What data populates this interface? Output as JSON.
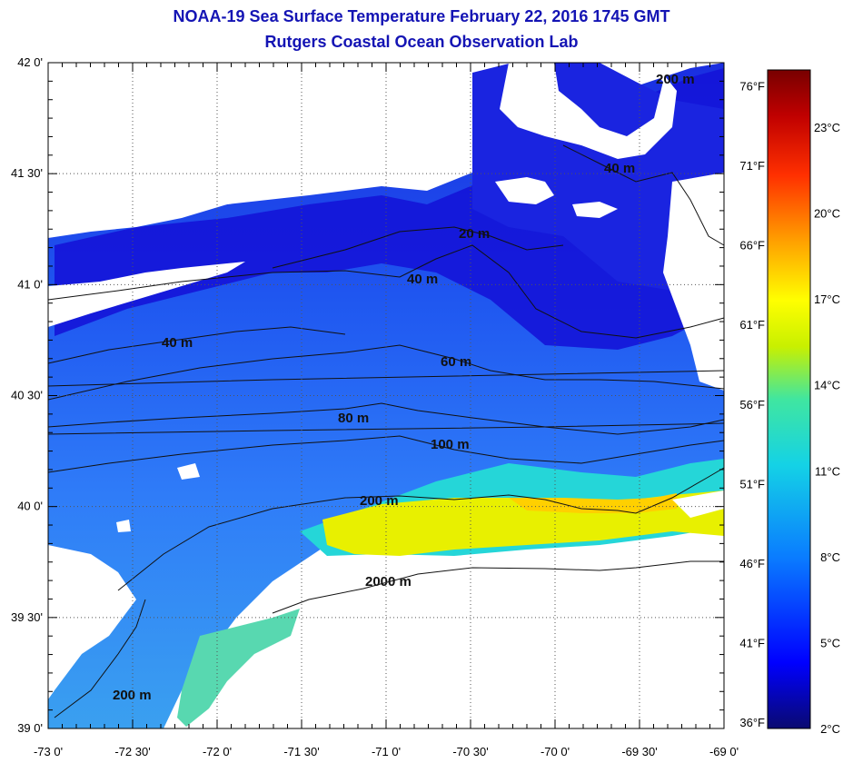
{
  "header": {
    "title": "NOAA-19 Sea Surface Temperature February 22, 2016 1745 GMT",
    "subtitle": "Rutgers Coastal Ocean Observation Lab"
  },
  "axes": {
    "x_ticks": [
      "-73 0'",
      "-72 30'",
      "-72 0'",
      "-71 30'",
      "-71 0'",
      "-70 30'",
      "-70 0'",
      "-69 30'",
      "-69 0'"
    ],
    "y_ticks": [
      "39 0'",
      "39 30'",
      "40 0'",
      "40 30'",
      "41 0'",
      "41 30'",
      "42 0'"
    ],
    "lon_range": [
      -73,
      -69
    ],
    "lat_range": [
      39,
      42
    ],
    "grid": "dotted"
  },
  "contours": {
    "labels": [
      "20 m",
      "40 m",
      "40 m",
      "40 m",
      "60 m",
      "80 m",
      "100 m",
      "200 m",
      "200 m",
      "200 m",
      "2000 m"
    ]
  },
  "colorbar": {
    "celsius_labels": [
      "23°C",
      "20°C",
      "17°C",
      "14°C",
      "11°C",
      "8°C",
      "5°C",
      "2°C"
    ],
    "fahrenheit_labels": [
      "76°F",
      "71°F",
      "66°F",
      "61°F",
      "56°F",
      "51°F",
      "46°F",
      "41°F",
      "36°F"
    ],
    "range_c": [
      2,
      25
    ],
    "colors": [
      "#0a0a80",
      "#0000ff",
      "#0a7cff",
      "#14d2e6",
      "#00e0a8",
      "#c8f000",
      "#ffff00",
      "#ffa000",
      "#ff3000",
      "#b40000",
      "#780000"
    ]
  }
}
